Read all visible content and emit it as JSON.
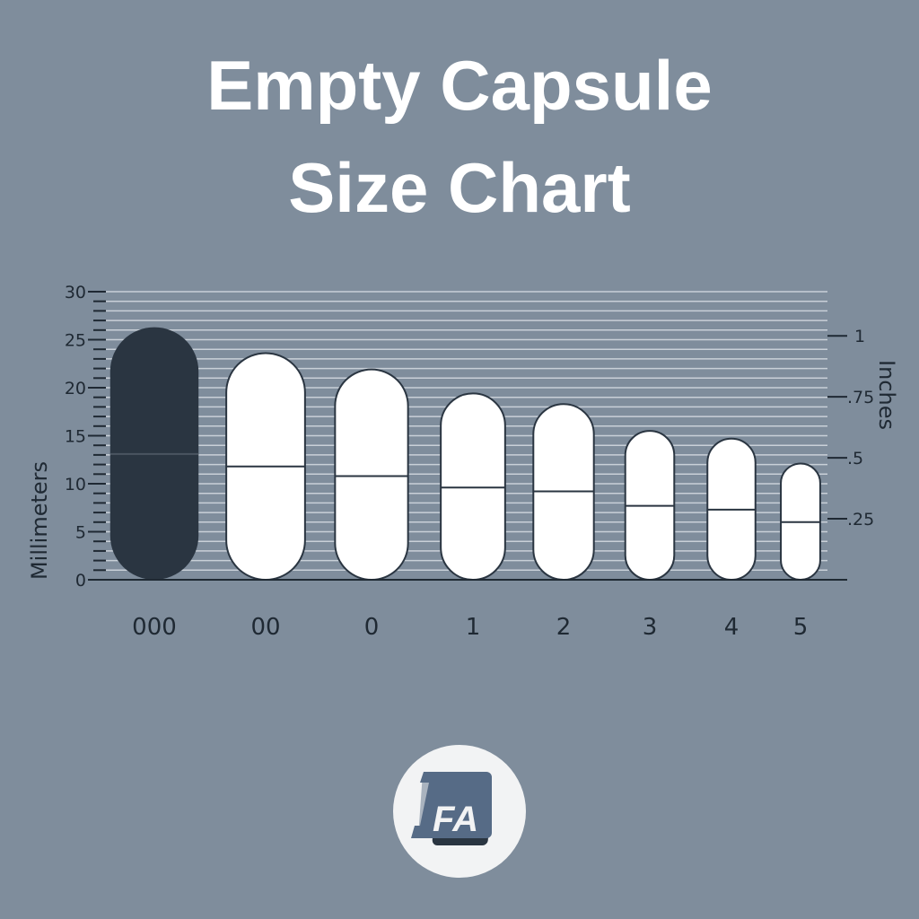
{
  "title_line1": "Empty Capsule",
  "title_line2": "Size Chart",
  "chart_data": {
    "type": "bar",
    "ylabel": "Millimeters",
    "y2label": "Inches",
    "ylim": [
      0,
      30
    ],
    "yticks": [
      0,
      5,
      10,
      15,
      20,
      25,
      30
    ],
    "y2ticks": [
      {
        "label": ".25",
        "inches": 0.25
      },
      {
        "label": ".5",
        "inches": 0.5
      },
      {
        "label": ".75",
        "inches": 0.75
      },
      {
        "label": "1",
        "inches": 1
      }
    ],
    "grid": true,
    "categories": [
      "000",
      "00",
      "0",
      "1",
      "2",
      "3",
      "4",
      "5"
    ],
    "length_mm": [
      26.3,
      23.6,
      21.9,
      19.4,
      18.3,
      15.5,
      14.7,
      12.1
    ],
    "diameter_mm": [
      9.2,
      8.2,
      7.6,
      6.7,
      6.3,
      5.1,
      5.0,
      4.1
    ],
    "joint_mm": [
      13.1,
      11.8,
      10.8,
      9.6,
      9.2,
      7.7,
      7.3,
      6.0
    ],
    "highlight_category": "000",
    "colors": {
      "background": "#7f8d9c",
      "highlight": "#2a3541",
      "capsule": "#ffffff",
      "outline": "#2a3541",
      "grid": "#c9d0d8"
    }
  },
  "logo": {
    "text": "FA",
    "colors": [
      "#566b86",
      "#a9b3bf",
      "#2a3541"
    ]
  }
}
